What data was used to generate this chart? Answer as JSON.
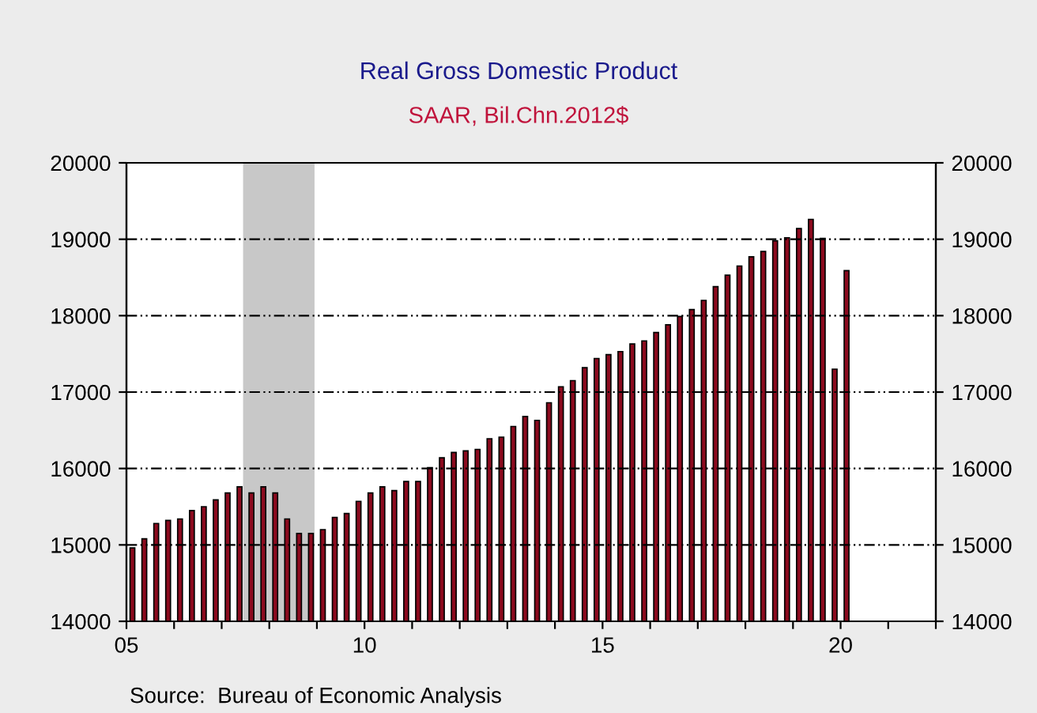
{
  "chart_data": {
    "type": "bar",
    "title": "Real Gross Domestic Product",
    "subtitle": "SAAR, Bil.Chn.2012$",
    "x": [
      2005.125,
      2005.375,
      2005.625,
      2005.875,
      2006.125,
      2006.375,
      2006.625,
      2006.875,
      2007.125,
      2007.375,
      2007.625,
      2007.875,
      2008.125,
      2008.375,
      2008.625,
      2008.875,
      2009.125,
      2009.375,
      2009.625,
      2009.875,
      2010.125,
      2010.375,
      2010.625,
      2010.875,
      2011.125,
      2011.375,
      2011.625,
      2011.875,
      2012.125,
      2012.375,
      2012.625,
      2012.875,
      2013.125,
      2013.375,
      2013.625,
      2013.875,
      2014.125,
      2014.375,
      2014.625,
      2014.875,
      2015.125,
      2015.375,
      2015.625,
      2015.875,
      2016.125,
      2016.375,
      2016.625,
      2016.875,
      2017.125,
      2017.375,
      2017.625,
      2017.875,
      2018.125,
      2018.375,
      2018.625,
      2018.875,
      2019.125,
      2019.375,
      2019.625,
      2019.875,
      2020.125
    ],
    "series": [
      {
        "color": "#8b0a1e",
        "values": [
          14960,
          15080,
          15280,
          15320,
          15340,
          15450,
          15500,
          15590,
          15680,
          15760,
          15680,
          15760,
          15680,
          15340,
          15150,
          15150,
          15200,
          15360,
          15410,
          15570,
          15680,
          15760,
          15710,
          15830,
          15830,
          16010,
          16140,
          16210,
          16230,
          16250,
          16390,
          16410,
          16550,
          16680,
          16630,
          16860,
          17070,
          17150,
          17320,
          17440,
          17490,
          17530,
          17630,
          17670,
          17780,
          17880,
          17990,
          18080,
          18200,
          18380,
          18530,
          18650,
          18770,
          18840,
          18980,
          19020,
          19140,
          19260,
          19010,
          17300,
          18590
        ]
      }
    ],
    "xlim": [
      2005,
      2022
    ],
    "xticks": [
      {
        "value": 2005,
        "label": "05"
      },
      {
        "value": 2006,
        "label": null
      },
      {
        "value": 2007,
        "label": null
      },
      {
        "value": 2008,
        "label": null
      },
      {
        "value": 2009,
        "label": null
      },
      {
        "value": 2010,
        "label": "10"
      },
      {
        "value": 2011,
        "label": null
      },
      {
        "value": 2012,
        "label": null
      },
      {
        "value": 2013,
        "label": null
      },
      {
        "value": 2014,
        "label": null
      },
      {
        "value": 2015,
        "label": "15"
      },
      {
        "value": 2016,
        "label": null
      },
      {
        "value": 2017,
        "label": null
      },
      {
        "value": 2018,
        "label": null
      },
      {
        "value": 2019,
        "label": null
      },
      {
        "value": 2020,
        "label": "20"
      },
      {
        "value": 2021,
        "label": null
      },
      {
        "value": 2022,
        "label": null
      }
    ],
    "ylim": [
      14000,
      20000
    ],
    "yticks": [
      14000,
      15000,
      16000,
      17000,
      18000,
      19000,
      20000
    ],
    "y2lim": [
      14000,
      20000
    ],
    "y2ticks": [
      14000,
      15000,
      16000,
      17000,
      18000,
      19000,
      20000
    ],
    "bands": [
      {
        "axis": "x",
        "from": 2007.45,
        "to": 2008.95,
        "color": "#c8c8c8"
      }
    ],
    "grid": "y",
    "legend": false,
    "annotations": [
      "Source:  Bureau of Economic Analysis"
    ]
  }
}
